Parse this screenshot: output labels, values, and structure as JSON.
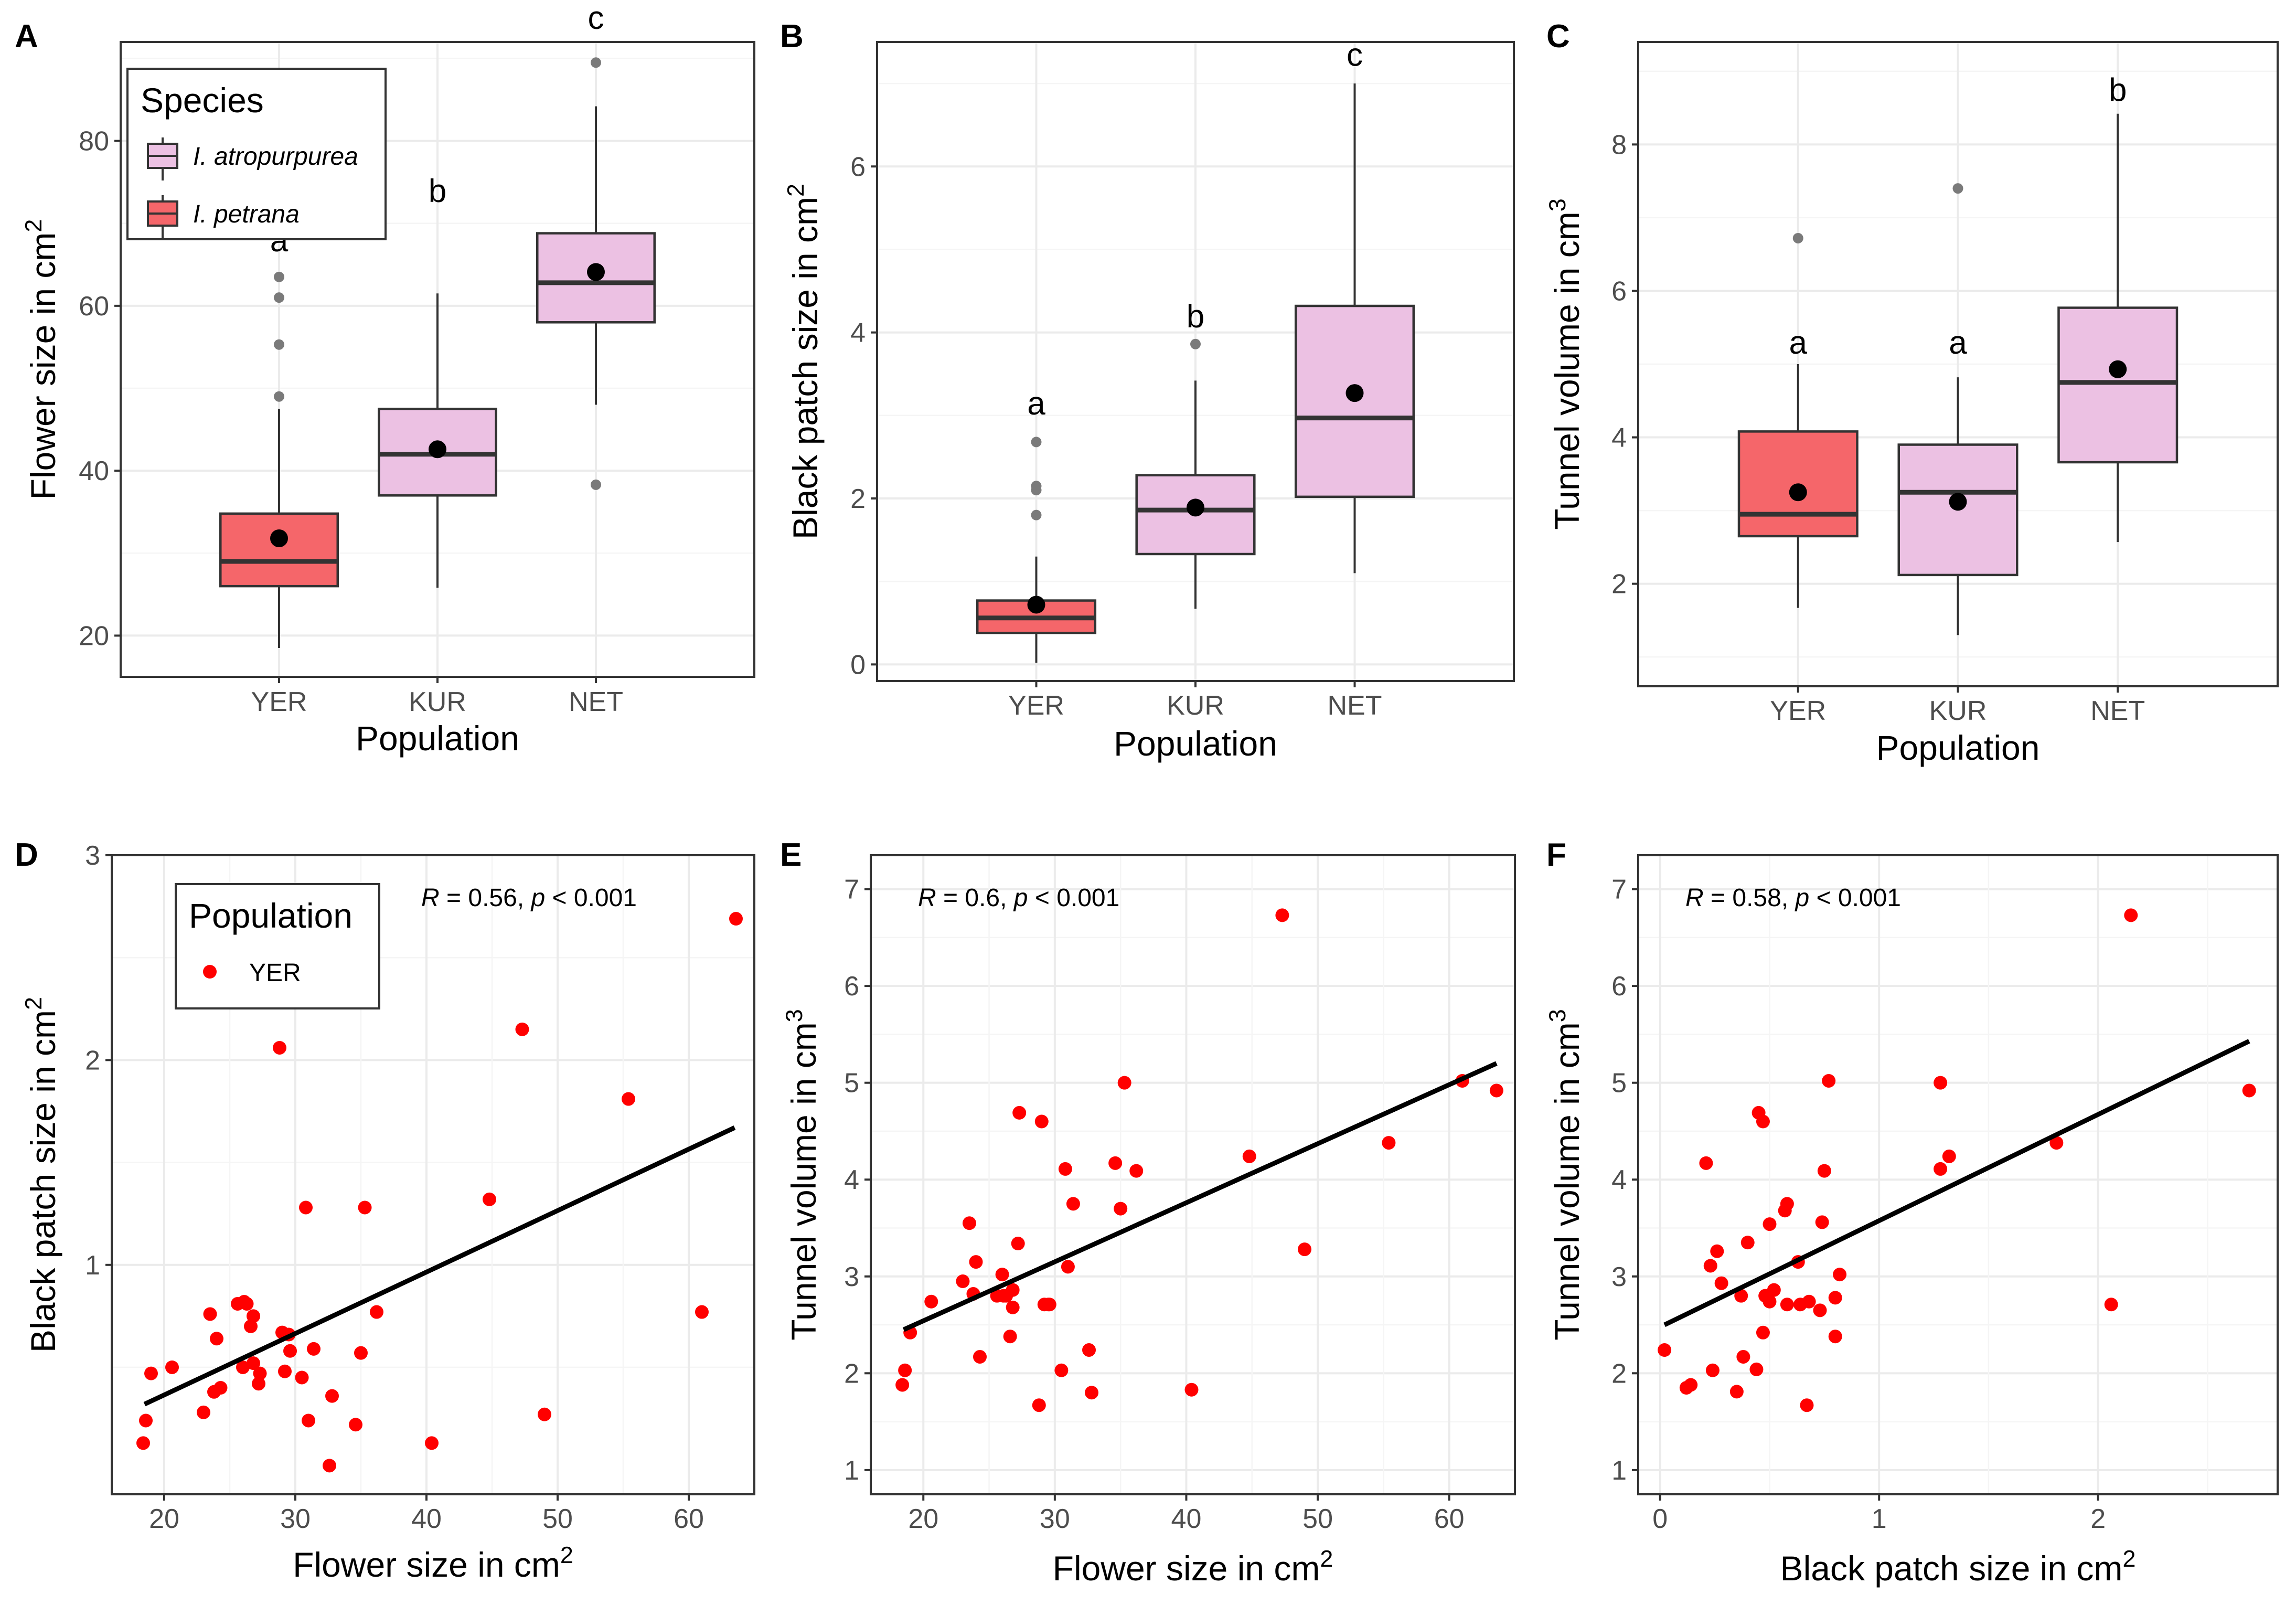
{
  "colors": {
    "atropurpurea": "#ecc1e3",
    "petrana": "#f5666a",
    "point": "#ff0000",
    "outlier": "#7a7a7a",
    "line": "#000000"
  },
  "chart_data": [
    {
      "panel": "A",
      "type": "box",
      "xlabel": "Population",
      "ylabel": "Flower size in cm",
      "ylabel_sup": "2",
      "categories": [
        "YER",
        "KUR",
        "NET"
      ],
      "ylim": [
        15,
        92
      ],
      "yticks": [
        20,
        40,
        60,
        80
      ],
      "boxes": [
        {
          "cat": "YER",
          "species": "petrana",
          "q1": 26,
          "median": 29,
          "q3": 34.8,
          "lo": 18.5,
          "hi": 47.5,
          "mean": 31.8,
          "outliers": [
            49,
            55.3,
            61,
            63.5
          ],
          "letter": "a",
          "letter_y": 68
        },
        {
          "cat": "KUR",
          "species": "atropurpurea",
          "q1": 37,
          "median": 42,
          "q3": 47.5,
          "lo": 25.8,
          "hi": 61.5,
          "mean": 42.6,
          "outliers": [],
          "letter": "b",
          "letter_y": 74
        },
        {
          "cat": "NET",
          "species": "atropurpurea",
          "q1": 58,
          "median": 62.8,
          "q3": 68.8,
          "lo": 48,
          "hi": 84.2,
          "mean": 64.1,
          "outliers": [
            38.3,
            89.5
          ],
          "letter": "c",
          "letter_y": 95
        }
      ],
      "legend": {
        "title": "Species",
        "entries": [
          {
            "label": "I. atropurpurea",
            "species": "atropurpurea"
          },
          {
            "label": "I. petrana",
            "species": "petrana"
          }
        ]
      }
    },
    {
      "panel": "B",
      "type": "box",
      "xlabel": "Population",
      "ylabel": "Black patch size in cm",
      "ylabel_sup": "2",
      "categories": [
        "YER",
        "KUR",
        "NET"
      ],
      "ylim": [
        -0.2,
        7.5
      ],
      "yticks": [
        0,
        2,
        4,
        6
      ],
      "boxes": [
        {
          "cat": "YER",
          "species": "petrana",
          "q1": 0.38,
          "median": 0.56,
          "q3": 0.77,
          "lo": 0.02,
          "hi": 1.3,
          "mean": 0.72,
          "outliers": [
            1.8,
            2.1,
            2.15,
            2.68
          ],
          "letter": "a",
          "letter_y": 3.15
        },
        {
          "cat": "KUR",
          "species": "atropurpurea",
          "q1": 1.33,
          "median": 1.86,
          "q3": 2.28,
          "lo": 0.67,
          "hi": 3.42,
          "mean": 1.89,
          "outliers": [
            3.86
          ],
          "letter": "b",
          "letter_y": 4.2
        },
        {
          "cat": "NET",
          "species": "atropurpurea",
          "q1": 2.02,
          "median": 2.97,
          "q3": 4.32,
          "lo": 1.1,
          "hi": 7.0,
          "mean": 3.27,
          "outliers": [],
          "letter": "c",
          "letter_y": 7.35
        }
      ]
    },
    {
      "panel": "C",
      "type": "box",
      "xlabel": "Population",
      "ylabel": "Tunnel volume in cm",
      "ylabel_sup": "3",
      "categories": [
        "YER",
        "KUR",
        "NET"
      ],
      "ylim": [
        0.6,
        9.4
      ],
      "yticks": [
        2,
        4,
        6,
        8
      ],
      "boxes": [
        {
          "cat": "YER",
          "species": "petrana",
          "q1": 2.65,
          "median": 2.95,
          "q3": 4.08,
          "lo": 1.67,
          "hi": 5.0,
          "mean": 3.25,
          "outliers": [
            6.72
          ],
          "letter": "a",
          "letter_y": 5.3
        },
        {
          "cat": "KUR",
          "species": "atropurpurea",
          "q1": 2.12,
          "median": 3.25,
          "q3": 3.9,
          "lo": 1.3,
          "hi": 4.82,
          "mean": 3.12,
          "outliers": [
            7.4
          ],
          "letter": "a",
          "letter_y": 5.3
        },
        {
          "cat": "NET",
          "species": "atropurpurea",
          "q1": 3.66,
          "median": 4.75,
          "q3": 5.77,
          "lo": 2.57,
          "hi": 8.42,
          "mean": 4.93,
          "outliers": [],
          "letter": "b",
          "letter_y": 8.75
        }
      ]
    },
    {
      "panel": "D",
      "type": "scatter",
      "xlabel": "Flower size in cm",
      "xlabel_sup": "2",
      "ylabel": "Black patch size in cm",
      "ylabel_sup": "2",
      "xlim": [
        16,
        65
      ],
      "ylim": [
        -0.12,
        3.0
      ],
      "xticks": [
        20,
        30,
        40,
        50,
        60
      ],
      "yticks": [
        1,
        2,
        3
      ],
      "stat": {
        "r_label": "R",
        "r_text": " = 0.56, ",
        "p_label": "p",
        "p_text": " < 0.001"
      },
      "legend": {
        "title": "Population",
        "entries": [
          "YER"
        ]
      },
      "fit": {
        "x": [
          18.5,
          63.5
        ],
        "y": [
          0.32,
          1.67
        ]
      },
      "points": [
        [
          18.4,
          0.13
        ],
        [
          18.6,
          0.24
        ],
        [
          19,
          0.47
        ],
        [
          20.6,
          0.5
        ],
        [
          23,
          0.28
        ],
        [
          23.5,
          0.76
        ],
        [
          23.8,
          0.38
        ],
        [
          24,
          0.64
        ],
        [
          24.3,
          0.4
        ],
        [
          25.6,
          0.81
        ],
        [
          26,
          0.5
        ],
        [
          26.1,
          0.82
        ],
        [
          26.3,
          0.81
        ],
        [
          26.6,
          0.7
        ],
        [
          26.8,
          0.52
        ],
        [
          26.8,
          0.75
        ],
        [
          27.2,
          0.42
        ],
        [
          27.3,
          0.47
        ],
        [
          28.8,
          2.06
        ],
        [
          29,
          0.67
        ],
        [
          29.2,
          0.48
        ],
        [
          29.5,
          0.66
        ],
        [
          29.6,
          0.58
        ],
        [
          30.5,
          0.45
        ],
        [
          30.8,
          1.28
        ],
        [
          31,
          0.24
        ],
        [
          31.4,
          0.59
        ],
        [
          32.6,
          0.02
        ],
        [
          32.8,
          0.36
        ],
        [
          34.6,
          0.22
        ],
        [
          35,
          0.57
        ],
        [
          35.3,
          1.28
        ],
        [
          36.2,
          0.77
        ],
        [
          40.4,
          0.13
        ],
        [
          44.8,
          1.32
        ],
        [
          47.3,
          2.15
        ],
        [
          49,
          0.27
        ],
        [
          55.4,
          1.81
        ],
        [
          61,
          0.77
        ],
        [
          63.6,
          2.69
        ]
      ]
    },
    {
      "panel": "E",
      "type": "scatter",
      "xlabel": "Flower size in cm",
      "xlabel_sup": "2",
      "ylabel": "Tunnel volume in cm",
      "ylabel_sup": "3",
      "xlim": [
        16,
        65
      ],
      "ylim": [
        0.75,
        7.35
      ],
      "xticks": [
        20,
        30,
        40,
        50,
        60
      ],
      "yticks": [
        1,
        2,
        3,
        4,
        5,
        6,
        7
      ],
      "stat": {
        "r_label": "R",
        "r_text": " = 0.6, ",
        "p_label": "p",
        "p_text": " < 0.001"
      },
      "fit": {
        "x": [
          18.5,
          63.6
        ],
        "y": [
          2.45,
          5.2
        ]
      },
      "points": [
        [
          18.4,
          1.88
        ],
        [
          18.6,
          2.03
        ],
        [
          19,
          2.42
        ],
        [
          20.6,
          2.74
        ],
        [
          23,
          2.95
        ],
        [
          23.5,
          3.55
        ],
        [
          23.8,
          2.82
        ],
        [
          24,
          3.15
        ],
        [
          24.3,
          2.17
        ],
        [
          25.6,
          2.8
        ],
        [
          26,
          3.02
        ],
        [
          26.1,
          2.8
        ],
        [
          26.3,
          2.8
        ],
        [
          26.6,
          2.38
        ],
        [
          26.8,
          2.86
        ],
        [
          26.8,
          2.68
        ],
        [
          27.2,
          3.34
        ],
        [
          27.3,
          4.69
        ],
        [
          28.8,
          1.67
        ],
        [
          29,
          4.6
        ],
        [
          29.2,
          2.71
        ],
        [
          29.5,
          2.71
        ],
        [
          29.6,
          2.71
        ],
        [
          30.5,
          2.03
        ],
        [
          30.8,
          4.11
        ],
        [
          31,
          3.1
        ],
        [
          31.4,
          3.75
        ],
        [
          32.6,
          2.24
        ],
        [
          32.8,
          1.8
        ],
        [
          34.6,
          4.17
        ],
        [
          35,
          3.7
        ],
        [
          35.3,
          5.0
        ],
        [
          36.2,
          4.09
        ],
        [
          40.4,
          1.83
        ],
        [
          44.8,
          4.24
        ],
        [
          47.3,
          6.73
        ],
        [
          49,
          3.28
        ],
        [
          55.4,
          4.38
        ],
        [
          61,
          5.02
        ],
        [
          63.6,
          4.92
        ]
      ]
    },
    {
      "panel": "F",
      "type": "scatter",
      "xlabel": "Black patch size in cm",
      "xlabel_sup": "2",
      "ylabel": "Tunnel volume in cm",
      "ylabel_sup": "3",
      "xlim": [
        -0.1,
        2.82
      ],
      "ylim": [
        0.75,
        7.35
      ],
      "xticks": [
        0,
        1,
        2
      ],
      "yticks": [
        1,
        2,
        3,
        4,
        5,
        6,
        7
      ],
      "stat": {
        "r_label": "R",
        "r_text": " = 0.58, ",
        "p_label": "p",
        "p_text": " < 0.001"
      },
      "fit": {
        "x": [
          0.02,
          2.69
        ],
        "y": [
          2.5,
          5.43
        ]
      },
      "points": [
        [
          0.02,
          2.24
        ],
        [
          0.12,
          1.85
        ],
        [
          0.14,
          1.88
        ],
        [
          0.21,
          4.17
        ],
        [
          0.23,
          3.11
        ],
        [
          0.24,
          2.03
        ],
        [
          0.26,
          3.26
        ],
        [
          0.28,
          2.93
        ],
        [
          0.35,
          1.81
        ],
        [
          0.37,
          2.8
        ],
        [
          0.38,
          2.17
        ],
        [
          0.4,
          3.35
        ],
        [
          0.44,
          2.04
        ],
        [
          0.45,
          4.69
        ],
        [
          0.47,
          4.6
        ],
        [
          0.47,
          2.42
        ],
        [
          0.48,
          2.8
        ],
        [
          0.5,
          2.74
        ],
        [
          0.5,
          3.54
        ],
        [
          0.52,
          2.86
        ],
        [
          0.57,
          3.68
        ],
        [
          0.58,
          2.71
        ],
        [
          0.58,
          3.75
        ],
        [
          0.63,
          3.15
        ],
        [
          0.64,
          2.71
        ],
        [
          0.67,
          1.67
        ],
        [
          0.68,
          2.74
        ],
        [
          0.73,
          2.65
        ],
        [
          0.74,
          3.56
        ],
        [
          0.75,
          4.09
        ],
        [
          0.77,
          5.02
        ],
        [
          0.8,
          2.38
        ],
        [
          0.8,
          2.78
        ],
        [
          0.82,
          3.02
        ],
        [
          1.28,
          4.11
        ],
        [
          1.28,
          5.0
        ],
        [
          1.32,
          4.24
        ],
        [
          1.81,
          4.38
        ],
        [
          2.06,
          2.71
        ],
        [
          2.15,
          6.73
        ],
        [
          2.69,
          4.92
        ]
      ]
    }
  ]
}
